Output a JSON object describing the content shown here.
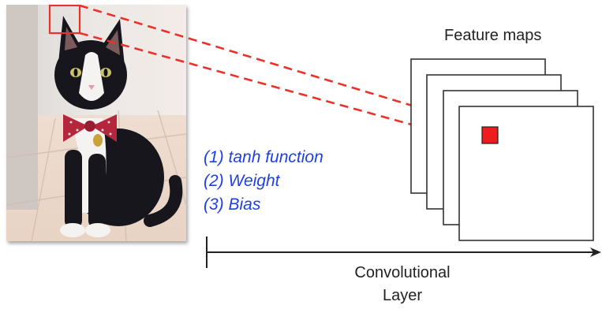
{
  "feature_maps_label": "Feature maps",
  "operations": [
    {
      "text": "(1) tanh function"
    },
    {
      "text": "(2) Weight"
    },
    {
      "text": "(3) Bias"
    }
  ],
  "layer_label": {
    "line1": "Convolutional",
    "line2": "Layer"
  },
  "colors": {
    "operations_text": "#1f3fe6",
    "receptive_field": "#e8322a",
    "feature_map_border": "#333333",
    "arrow": "#222222"
  },
  "icons": {
    "input_image": "cat-photo-icon"
  }
}
